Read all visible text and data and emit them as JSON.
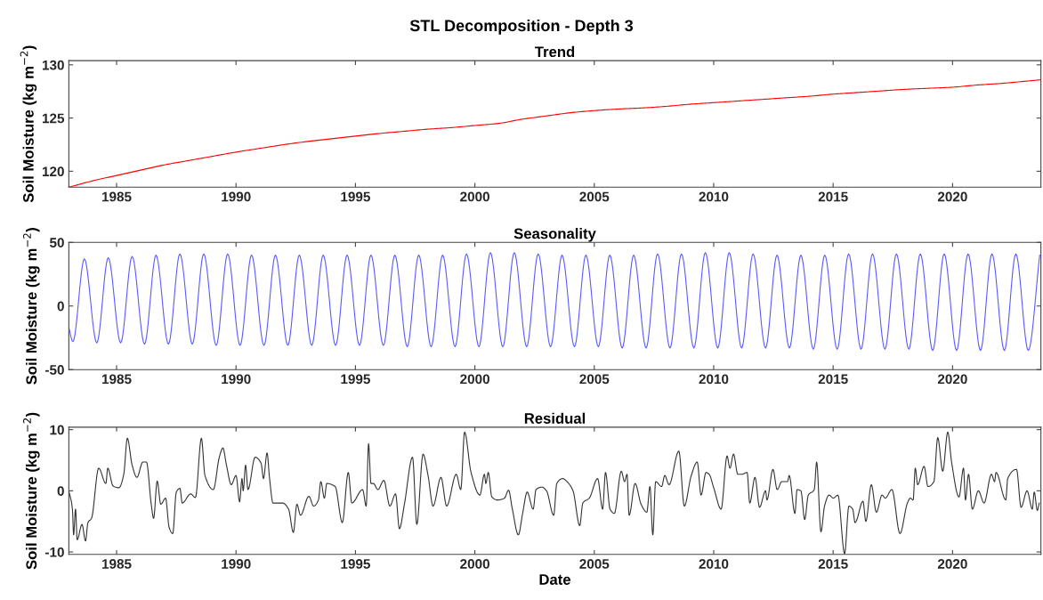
{
  "chart_data": [
    {
      "type": "line",
      "title": "STL Decomposition - Depth 3",
      "subtitle": "Trend",
      "ylabel": "Soil Moisture (kg m$^{−2}$)",
      "xlim": [
        1983.0,
        2023.7
      ],
      "xticks": [
        1985,
        1990,
        1995,
        2000,
        2005,
        2010,
        2015,
        2020
      ],
      "ylim": [
        118.5,
        130.4
      ],
      "yticks": [
        120,
        125,
        130
      ],
      "grid": false,
      "legend": false,
      "marker": "none",
      "line_style": "solid",
      "series": [
        {
          "color": "#ff0000",
          "x": [
            1983.0,
            1984,
            1985,
            1986,
            1987,
            1988,
            1989,
            1990,
            1991,
            1992,
            1993,
            1994,
            1995,
            1996,
            1997,
            1998,
            1999,
            2000,
            2001,
            2002,
            2003,
            2004,
            2005,
            2006,
            2007,
            2008,
            2009,
            2010,
            2011,
            2012,
            2013,
            2014,
            2015,
            2016,
            2017,
            2018,
            2019,
            2020,
            2021,
            2022,
            2023,
            2023.7
          ],
          "values": [
            118.5,
            119.1,
            119.6,
            120.1,
            120.6,
            121.0,
            121.4,
            121.8,
            122.15,
            122.5,
            122.8,
            123.05,
            123.3,
            123.55,
            123.75,
            123.95,
            124.1,
            124.3,
            124.5,
            124.9,
            125.2,
            125.5,
            125.7,
            125.85,
            125.95,
            126.1,
            126.3,
            126.45,
            126.6,
            126.75,
            126.9,
            127.05,
            127.25,
            127.4,
            127.55,
            127.7,
            127.8,
            127.9,
            128.1,
            128.25,
            128.45,
            128.6
          ]
        }
      ]
    },
    {
      "type": "line",
      "subtitle": "Seasonality",
      "ylabel": "Soil Moisture (kg m$^{−2}$)",
      "xlim": [
        1983.0,
        2023.7
      ],
      "xticks": [
        1985,
        1990,
        1995,
        2000,
        2005,
        2010,
        2015,
        2020
      ],
      "ylim": [
        -50,
        50
      ],
      "yticks": [
        -50,
        0,
        50
      ],
      "grid": false,
      "legend": false,
      "marker": "none",
      "line_style": "solid",
      "series": [
        {
          "color": "#5a5aff",
          "x": [
            1983.0,
            1983.17,
            1983.65,
            1984.17,
            1984.65,
            1985.17,
            1985.65,
            1986.17,
            1986.65,
            1987.17,
            1987.65,
            1988.17,
            1988.65,
            1989.17,
            1989.65,
            1990.17,
            1990.65,
            1991.17,
            1991.65,
            1992.17,
            1992.65,
            1993.17,
            1993.65,
            1994.17,
            1994.65,
            1995.17,
            1995.65,
            1996.17,
            1996.65,
            1997.17,
            1997.65,
            1998.17,
            1998.65,
            1999.17,
            1999.65,
            2000.17,
            2000.65,
            2001.17,
            2001.65,
            2002.17,
            2002.65,
            2003.17,
            2003.65,
            2004.17,
            2004.65,
            2005.17,
            2005.65,
            2006.17,
            2006.65,
            2007.17,
            2007.65,
            2008.17,
            2008.65,
            2009.17,
            2009.65,
            2010.17,
            2010.65,
            2011.17,
            2011.65,
            2012.17,
            2012.65,
            2013.17,
            2013.65,
            2014.17,
            2014.65,
            2015.17,
            2015.65,
            2016.17,
            2016.65,
            2017.17,
            2017.65,
            2018.17,
            2018.65,
            2019.17,
            2019.65,
            2020.17,
            2020.65,
            2021.17,
            2021.65,
            2022.17,
            2022.65,
            2023.17,
            2023.65
          ],
          "values": [
            -17,
            -28,
            37,
            -29,
            38,
            -29,
            39,
            -30,
            40,
            -30,
            41,
            -30,
            41,
            -31,
            41,
            -31,
            40,
            -31,
            40,
            -31,
            40,
            -31,
            40,
            -31,
            40,
            -31,
            40,
            -31,
            40,
            -32,
            40,
            -32,
            40,
            -32,
            41,
            -32,
            42,
            -32,
            42,
            -32,
            41,
            -32,
            40,
            -32,
            40,
            -32,
            40,
            -33,
            40,
            -33,
            41,
            -33,
            41,
            -33,
            42,
            -33,
            42,
            -33,
            41,
            -33,
            40,
            -33,
            40,
            -34,
            40,
            -34,
            41,
            -34,
            41,
            -34,
            41,
            -34,
            41,
            -35,
            41,
            -35,
            41,
            -35,
            41,
            -35,
            41,
            -35,
            40
          ]
        }
      ]
    },
    {
      "type": "line",
      "subtitle": "Residual",
      "xlabel": "Date",
      "ylabel": "Soil Moisture (kg m$^{−2}$)",
      "xlim": [
        1983.0,
        2023.7
      ],
      "xticks": [
        1985,
        1990,
        1995,
        2000,
        2005,
        2010,
        2015,
        2020
      ],
      "ylim": [
        -10.4,
        10.4
      ],
      "yticks": [
        -10,
        0,
        10
      ],
      "grid": false,
      "legend": false,
      "marker": "none",
      "line_style": "solid",
      "series": [
        {
          "color": "#333333",
          "x": [
            1983.0,
            1983.15,
            1983.2,
            1983.28,
            1983.35,
            1983.55,
            1983.7,
            1983.8,
            1983.95,
            1984.25,
            1984.55,
            1984.63,
            1984.85,
            1985.1,
            1985.3,
            1985.45,
            1985.65,
            1985.85,
            1986.1,
            1986.25,
            1986.45,
            1986.55,
            1986.7,
            1986.85,
            1987.05,
            1987.2,
            1987.35,
            1987.5,
            1987.65,
            1987.75,
            1988.1,
            1988.3,
            1988.55,
            1988.7,
            1989.05,
            1989.3,
            1989.45,
            1989.6,
            1989.8,
            1990.0,
            1990.15,
            1990.25,
            1990.3,
            1990.4,
            1990.5,
            1990.8,
            1991.05,
            1991.15,
            1991.3,
            1991.4,
            1991.55,
            1991.95,
            1992.2,
            1992.4,
            1992.55,
            1992.7,
            1993.05,
            1993.25,
            1993.45,
            1993.55,
            1993.7,
            1993.8,
            1994.15,
            1994.45,
            1994.7,
            1994.85,
            1995.3,
            1995.45,
            1995.55,
            1995.65,
            1995.75,
            1995.94,
            1996.19,
            1996.44,
            1996.68,
            1996.84,
            1997.05,
            1997.39,
            1997.57,
            1997.83,
            1998.04,
            1998.25,
            1998.58,
            1998.82,
            1999.22,
            1999.41,
            1999.57,
            1999.84,
            2000.21,
            2000.4,
            2000.46,
            2000.56,
            2000.71,
            2000.95,
            2001.24,
            2001.41,
            2001.57,
            2001.82,
            2002.0,
            2002.19,
            2002.44,
            2002.56,
            2002.81,
            2003.0,
            2003.3,
            2003.43,
            2003.68,
            2003.86,
            2004.11,
            2004.39,
            2004.52,
            2004.79,
            2005.14,
            2005.35,
            2005.47,
            2005.66,
            2005.84,
            2006.13,
            2006.27,
            2006.37,
            2006.46,
            2006.71,
            2006.96,
            2007.2,
            2007.33,
            2007.45,
            2007.57,
            2007.82,
            2007.95,
            2008.13,
            2008.54,
            2008.77,
            2009.06,
            2009.31,
            2009.47,
            2009.68,
            2009.81,
            2010.0,
            2010.31,
            2010.56,
            2010.68,
            2010.83,
            2011.01,
            2011.18,
            2011.4,
            2011.51,
            2011.73,
            2011.92,
            2012.17,
            2012.23,
            2012.48,
            2012.66,
            2012.85,
            2013.09,
            2013.16,
            2013.4,
            2013.49,
            2013.65,
            2013.81,
            2013.96,
            2014.21,
            2014.31,
            2014.49,
            2014.64,
            2014.83,
            2015.01,
            2015.2,
            2015.48,
            2015.66,
            2015.82,
            2015.92,
            2016.25,
            2016.37,
            2016.6,
            2016.81,
            2017.05,
            2017.18,
            2017.46,
            2017.8,
            2018.11,
            2018.23,
            2018.35,
            2018.44,
            2018.54,
            2018.81,
            2018.97,
            2019.22,
            2019.38,
            2019.59,
            2019.8,
            2019.96,
            2020.27,
            2020.46,
            2020.54,
            2020.67,
            2020.83,
            2021.08,
            2021.32,
            2021.63,
            2021.76,
            2021.82,
            2022.23,
            2022.31,
            2022.68,
            2022.87,
            2023.12,
            2023.34,
            2023.42,
            2023.55,
            2023.63
          ],
          "values": [
            0,
            -3,
            -7.2,
            -3,
            -8,
            -5.5,
            -8.2,
            -5.2,
            -4.5,
            3.7,
            1.2,
            3.7,
            0.8,
            0.5,
            2.7,
            8.6,
            4.2,
            2.2,
            4.7,
            4.7,
            -2.2,
            -4.5,
            1.6,
            -2.2,
            -1.2,
            -6,
            -7,
            -0.2,
            0.4,
            -2,
            -0.5,
            -1.1,
            8.6,
            2.5,
            0.2,
            5.5,
            7,
            4.2,
            1,
            2.5,
            -1.8,
            2,
            0,
            4.2,
            0.2,
            5.5,
            4.5,
            2,
            6.2,
            2.2,
            -2,
            -2,
            -3,
            -6.8,
            -2.2,
            -4,
            -0.9,
            -2.5,
            -1.5,
            1.5,
            -1.2,
            1.2,
            0.7,
            -5.2,
            3,
            -2,
            0.2,
            -2.5,
            7.7,
            1.2,
            1.2,
            0.2,
            1.7,
            -2.5,
            -0.5,
            -6.2,
            -2.2,
            5.5,
            -5.5,
            6,
            2.5,
            -2.5,
            2.2,
            -2.5,
            2.7,
            0.2,
            9.6,
            3,
            -0.7,
            2.7,
            1.2,
            3,
            -1,
            -1.5,
            -1.2,
            0.1,
            -3,
            -7.2,
            -3.7,
            -0.2,
            -3,
            0.2,
            0.6,
            0,
            -4,
            1.2,
            2,
            1.5,
            0,
            -5.7,
            -2,
            -1.2,
            2,
            -3,
            3,
            -3,
            -3.7,
            3.2,
            1.5,
            2.7,
            -4,
            1.2,
            -2.2,
            -3.5,
            0.7,
            -7.2,
            1.5,
            0.7,
            2.5,
            1,
            6.5,
            -2.5,
            2.5,
            4.7,
            -0.7,
            3,
            2.7,
            0.5,
            -3,
            5.7,
            3.7,
            6,
            2.7,
            2.7,
            3,
            -2,
            2.2,
            -2.7,
            0,
            -1.5,
            3.5,
            0.2,
            1.5,
            1.5,
            2.5,
            -3.7,
            0.2,
            0,
            -4.7,
            -0.7,
            0.2,
            4.7,
            -6.7,
            -2.5,
            -0.7,
            -1.2,
            -0.7,
            -10.3,
            -2.5,
            -3,
            -5.2,
            -1.7,
            -5,
            1,
            -3.5,
            -0.7,
            -1.2,
            0.2,
            -7,
            -2,
            -1.2,
            -1.5,
            3.7,
            1,
            4,
            0.7,
            1.5,
            8.7,
            3.2,
            9.6,
            4.7,
            -1,
            3.7,
            -1.5,
            2.7,
            -3,
            0,
            -2,
            2.7,
            1.5,
            3,
            -1.5,
            2,
            3.5,
            -2.7,
            0,
            -3,
            -0.2,
            -3.2,
            -2
          ]
        }
      ]
    }
  ]
}
